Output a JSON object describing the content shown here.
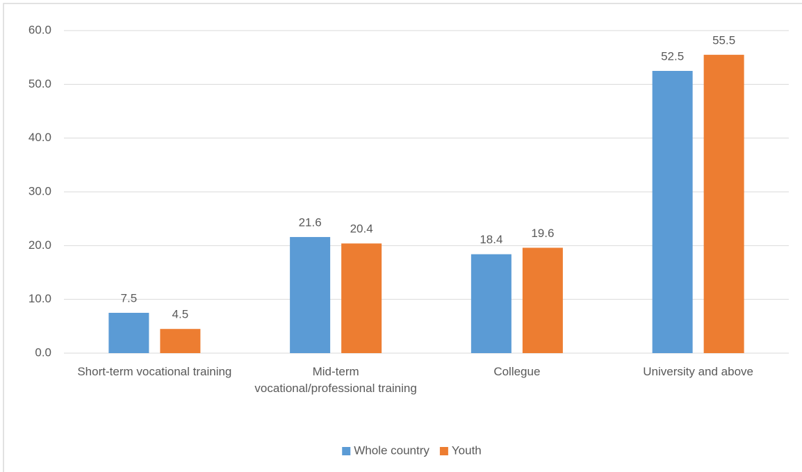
{
  "chart_data": {
    "type": "bar",
    "categories": [
      "Short-term vocational training",
      "Mid-term vocational/professional training",
      "Collegue",
      "University and above"
    ],
    "series": [
      {
        "name": "Whole country",
        "color": "#5b9bd5",
        "values": [
          7.5,
          21.6,
          18.4,
          52.5
        ]
      },
      {
        "name": "Youth",
        "color": "#ed7d31",
        "values": [
          4.5,
          20.4,
          19.6,
          55.5
        ]
      }
    ],
    "ylim": [
      0,
      60
    ],
    "yticks": [
      {
        "value": 0,
        "label": "0.0"
      },
      {
        "value": 10,
        "label": "10.0"
      },
      {
        "value": 20,
        "label": "20.0"
      },
      {
        "value": 30,
        "label": "30.0"
      },
      {
        "value": 40,
        "label": "40.0"
      },
      {
        "value": 50,
        "label": "50.0"
      },
      {
        "value": 60,
        "label": "60.0"
      }
    ],
    "grid": true,
    "legend": "bottom"
  }
}
